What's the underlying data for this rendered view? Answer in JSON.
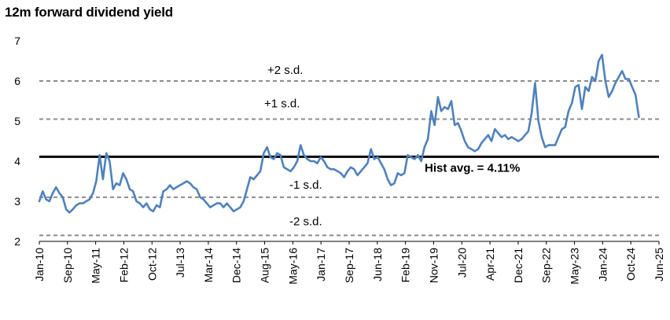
{
  "chart_data": {
    "type": "line",
    "title": "12m forward dividend yield",
    "xlabel": "",
    "ylabel": "",
    "ylim": [
      2,
      7
    ],
    "yticks": [
      2,
      3,
      4,
      5,
      6,
      7
    ],
    "grid": false,
    "legend": "none",
    "x_tick_labels": [
      "Jan-10",
      "Sep-10",
      "May-11",
      "Feb-12",
      "Oct-12",
      "Jul-13",
      "Mar-14",
      "Dec-14",
      "Aug-15",
      "May-16",
      "Jan-17",
      "Sep-17",
      "Jun-18",
      "Feb-19",
      "Nov-19",
      "Jul-20",
      "Apr-21",
      "Dec-21",
      "Sep-22",
      "May-23",
      "Jan-24",
      "Oct-24",
      "Jun-25"
    ],
    "x_range": [
      "Jan-10",
      "Jun-25"
    ],
    "reference_lines": [
      {
        "label": "+2 s.d.",
        "value": 6.0,
        "style": "dashed",
        "color": "#8c8c8c"
      },
      {
        "label": "+1 s.d.",
        "value": 5.05,
        "style": "dashed",
        "color": "#8c8c8c"
      },
      {
        "label": "Hist avg. = 4.11%",
        "value": 4.11,
        "style": "solid",
        "color": "#000000"
      },
      {
        "label": "-1 s.d.",
        "value": 3.1,
        "style": "dashed",
        "color": "#8c8c8c"
      },
      {
        "label": "-2 s.d.",
        "value": 2.15,
        "style": "dashed",
        "color": "#8c8c8c"
      }
    ],
    "series": [
      {
        "color": "#4f81bd",
        "points": [
          [
            "2010-01",
            3.0
          ],
          [
            "2010-02",
            3.25
          ],
          [
            "2010-03",
            3.05
          ],
          [
            "2010-04",
            3.0
          ],
          [
            "2010-05",
            3.2
          ],
          [
            "2010-06",
            3.35
          ],
          [
            "2010-07",
            3.2
          ],
          [
            "2010-08",
            3.1
          ],
          [
            "2010-09",
            2.8
          ],
          [
            "2010-10",
            2.72
          ],
          [
            "2010-11",
            2.8
          ],
          [
            "2010-12",
            2.9
          ],
          [
            "2011-01",
            2.95
          ],
          [
            "2011-02",
            2.95
          ],
          [
            "2011-03",
            3.0
          ],
          [
            "2011-04",
            3.05
          ],
          [
            "2011-05",
            3.2
          ],
          [
            "2011-06",
            3.5
          ],
          [
            "2011-07",
            4.15
          ],
          [
            "2011-08",
            3.55
          ],
          [
            "2011-09",
            4.2
          ],
          [
            "2011-10",
            4.0
          ],
          [
            "2011-11",
            3.3
          ],
          [
            "2011-12",
            3.45
          ],
          [
            "2012-01",
            3.4
          ],
          [
            "2012-02",
            3.7
          ],
          [
            "2012-03",
            3.55
          ],
          [
            "2012-04",
            3.3
          ],
          [
            "2012-05",
            3.25
          ],
          [
            "2012-06",
            3.0
          ],
          [
            "2012-07",
            2.95
          ],
          [
            "2012-08",
            2.85
          ],
          [
            "2012-09",
            2.95
          ],
          [
            "2012-10",
            2.8
          ],
          [
            "2012-11",
            2.75
          ],
          [
            "2012-12",
            2.9
          ],
          [
            "2013-01",
            2.85
          ],
          [
            "2013-02",
            3.25
          ],
          [
            "2013-03",
            3.3
          ],
          [
            "2013-04",
            3.4
          ],
          [
            "2013-05",
            3.3
          ],
          [
            "2013-06",
            3.35
          ],
          [
            "2013-07",
            3.4
          ],
          [
            "2013-08",
            3.45
          ],
          [
            "2013-09",
            3.5
          ],
          [
            "2013-10",
            3.45
          ],
          [
            "2013-11",
            3.35
          ],
          [
            "2013-12",
            3.3
          ],
          [
            "2014-01",
            3.1
          ],
          [
            "2014-02",
            3.05
          ],
          [
            "2014-03",
            2.95
          ],
          [
            "2014-04",
            2.85
          ],
          [
            "2014-05",
            2.9
          ],
          [
            "2014-06",
            2.95
          ],
          [
            "2014-07",
            2.95
          ],
          [
            "2014-08",
            2.85
          ],
          [
            "2014-09",
            2.95
          ],
          [
            "2014-10",
            2.85
          ],
          [
            "2014-11",
            2.75
          ],
          [
            "2014-12",
            2.8
          ],
          [
            "2015-01",
            2.85
          ],
          [
            "2015-02",
            3.0
          ],
          [
            "2015-03",
            3.3
          ],
          [
            "2015-04",
            3.6
          ],
          [
            "2015-05",
            3.55
          ],
          [
            "2015-06",
            3.65
          ],
          [
            "2015-07",
            3.75
          ],
          [
            "2015-08",
            4.2
          ],
          [
            "2015-09",
            4.35
          ],
          [
            "2015-10",
            4.1
          ],
          [
            "2015-11",
            4.05
          ],
          [
            "2015-12",
            4.2
          ],
          [
            "2016-01",
            4.15
          ],
          [
            "2016-02",
            3.85
          ],
          [
            "2016-03",
            3.8
          ],
          [
            "2016-04",
            3.75
          ],
          [
            "2016-05",
            3.85
          ],
          [
            "2016-06",
            4.0
          ],
          [
            "2016-07",
            4.4
          ],
          [
            "2016-08",
            4.15
          ],
          [
            "2016-09",
            4.05
          ],
          [
            "2016-10",
            4.0
          ],
          [
            "2016-11",
            4.0
          ],
          [
            "2016-12",
            3.95
          ],
          [
            "2017-01",
            4.1
          ],
          [
            "2017-02",
            4.0
          ],
          [
            "2017-03",
            3.85
          ],
          [
            "2017-04",
            3.8
          ],
          [
            "2017-05",
            3.8
          ],
          [
            "2017-06",
            3.75
          ],
          [
            "2017-07",
            3.7
          ],
          [
            "2017-08",
            3.6
          ],
          [
            "2017-09",
            3.75
          ],
          [
            "2017-10",
            3.85
          ],
          [
            "2017-11",
            3.8
          ],
          [
            "2017-12",
            3.65
          ],
          [
            "2018-01",
            3.75
          ],
          [
            "2018-02",
            3.85
          ],
          [
            "2018-03",
            3.95
          ],
          [
            "2018-04",
            4.3
          ],
          [
            "2018-05",
            4.05
          ],
          [
            "2018-06",
            4.1
          ],
          [
            "2018-07",
            3.95
          ],
          [
            "2018-08",
            3.8
          ],
          [
            "2018-09",
            3.55
          ],
          [
            "2018-10",
            3.4
          ],
          [
            "2018-11",
            3.45
          ],
          [
            "2018-12",
            3.7
          ],
          [
            "2019-01",
            3.65
          ],
          [
            "2019-02",
            3.7
          ],
          [
            "2019-03",
            4.15
          ],
          [
            "2019-04",
            4.1
          ],
          [
            "2019-05",
            4.05
          ],
          [
            "2019-06",
            4.15
          ],
          [
            "2019-07",
            4.0
          ],
          [
            "2019-08",
            4.35
          ],
          [
            "2019-09",
            4.55
          ],
          [
            "2019-10",
            5.25
          ],
          [
            "2019-11",
            4.9
          ],
          [
            "2019-12",
            5.6
          ],
          [
            "2020-01",
            5.25
          ],
          [
            "2020-02",
            5.35
          ],
          [
            "2020-03",
            5.3
          ],
          [
            "2020-04",
            5.5
          ],
          [
            "2020-05",
            4.9
          ],
          [
            "2020-06",
            4.95
          ],
          [
            "2020-07",
            4.75
          ],
          [
            "2020-08",
            4.5
          ],
          [
            "2020-09",
            4.35
          ],
          [
            "2020-10",
            4.3
          ],
          [
            "2020-11",
            4.25
          ],
          [
            "2020-12",
            4.3
          ],
          [
            "2021-01",
            4.45
          ],
          [
            "2021-02",
            4.55
          ],
          [
            "2021-03",
            4.65
          ],
          [
            "2021-04",
            4.5
          ],
          [
            "2021-05",
            4.8
          ],
          [
            "2021-06",
            4.7
          ],
          [
            "2021-07",
            4.6
          ],
          [
            "2021-08",
            4.65
          ],
          [
            "2021-09",
            4.55
          ],
          [
            "2021-10",
            4.6
          ],
          [
            "2021-11",
            4.55
          ],
          [
            "2021-12",
            4.5
          ],
          [
            "2022-01",
            4.55
          ],
          [
            "2022-02",
            4.65
          ],
          [
            "2022-03",
            4.75
          ],
          [
            "2022-04",
            5.2
          ],
          [
            "2022-05",
            5.95
          ],
          [
            "2022-06",
            5.0
          ],
          [
            "2022-07",
            4.6
          ],
          [
            "2022-08",
            4.35
          ],
          [
            "2022-09",
            4.4
          ],
          [
            "2022-10",
            4.4
          ],
          [
            "2022-11",
            4.4
          ],
          [
            "2022-12",
            4.6
          ],
          [
            "2023-01",
            4.8
          ],
          [
            "2023-02",
            4.85
          ],
          [
            "2023-03",
            5.25
          ],
          [
            "2023-04",
            5.45
          ],
          [
            "2023-05",
            5.85
          ],
          [
            "2023-06",
            5.9
          ],
          [
            "2023-07",
            5.3
          ],
          [
            "2023-08",
            5.85
          ],
          [
            "2023-09",
            5.75
          ],
          [
            "2023-10",
            6.1
          ],
          [
            "2023-11",
            6.0
          ],
          [
            "2023-12",
            6.5
          ],
          [
            "2024-01",
            6.65
          ],
          [
            "2024-02",
            6.0
          ],
          [
            "2024-03",
            5.6
          ],
          [
            "2024-04",
            5.75
          ],
          [
            "2024-05",
            5.95
          ],
          [
            "2024-06",
            6.1
          ],
          [
            "2024-07",
            6.25
          ],
          [
            "2024-08",
            6.05
          ],
          [
            "2024-09",
            6.05
          ],
          [
            "2024-10",
            5.85
          ],
          [
            "2024-11",
            5.65
          ],
          [
            "2024-12",
            5.1
          ]
        ]
      }
    ]
  }
}
